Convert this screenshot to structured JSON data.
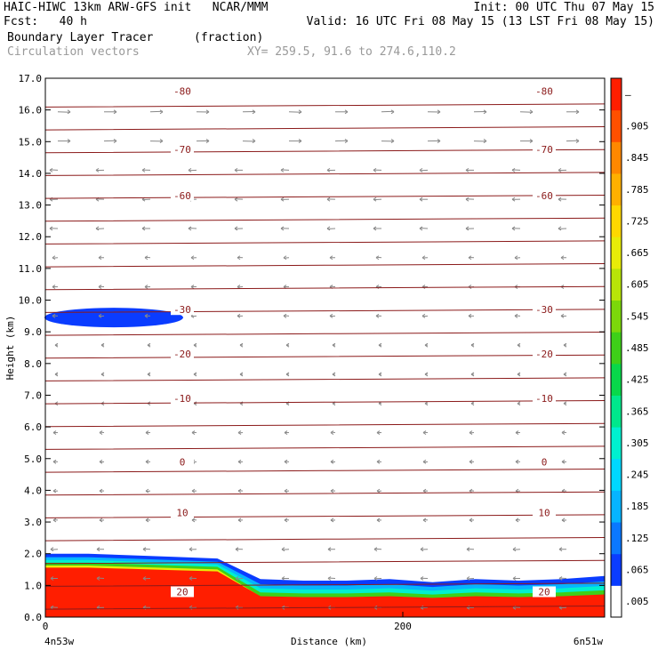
{
  "header": {
    "line1_left": "HAIC-HIWC 13km ARW-GFS init   NCAR/MMM",
    "line1_right": "Init: 00 UTC Thu 07 May 15",
    "line2_left": "Fcst:   40 h",
    "line2_right": "Valid: 16 UTC Fri 08 May 15 (13 LST Fri 08 May 15)",
    "line3_left": "Boundary Layer Tracer",
    "line3_mid": "(fraction)",
    "line4_left": "Circulation vectors",
    "line4_mid": "XY= 259.5, 91.6 to 274.6,110.2"
  },
  "chart_data": {
    "type": "heatmap",
    "title": "Boundary Layer Tracer",
    "units": "(fraction)",
    "xlabel": "Distance (km)",
    "ylabel": "Height (km)",
    "x_ticks": [
      "0",
      "200"
    ],
    "x_end_labels": {
      "left": "4n53w",
      "right": "6n51w"
    },
    "ylim": [
      0,
      17
    ],
    "y_ticks": [
      "0.0",
      "1.0",
      "2.0",
      "3.0",
      "4.0",
      "5.0",
      "6.0",
      "7.0",
      "8.0",
      "9.0",
      "10.0",
      "11.0",
      "12.0",
      "13.0",
      "14.0",
      "15.0",
      "16.0",
      "17.0"
    ],
    "colorbar_labels": [
      ".005",
      ".065",
      ".125",
      ".185",
      ".245",
      ".305",
      ".365",
      ".425",
      ".485",
      ".545",
      ".605",
      ".665",
      ".725",
      ".785",
      ".845",
      ".905",
      "–"
    ],
    "colorbar_colors": [
      "#ffffff",
      "#0a3cff",
      "#0a78ff",
      "#06b4ff",
      "#00d8ff",
      "#00f0d0",
      "#00e88c",
      "#08d84a",
      "#3ed018",
      "#7cd80a",
      "#b8e408",
      "#e8ec08",
      "#ffd800",
      "#ffb000",
      "#ff8800",
      "#ff5000",
      "#ff1e00"
    ],
    "isotherm_labels": [
      {
        "value": "-80",
        "height_km": 16.6
      },
      {
        "value": "-70",
        "height_km": 14.75
      },
      {
        "value": "-60",
        "height_km": 13.3
      },
      {
        "value": "-30",
        "height_km": 9.7
      },
      {
        "value": "-20",
        "height_km": 8.3
      },
      {
        "value": "-10",
        "height_km": 6.9
      },
      {
        "value": "0",
        "height_km": 4.9
      },
      {
        "value": "10",
        "height_km": 3.3
      },
      {
        "value": "20",
        "height_km": 0.8
      }
    ],
    "boundary_layer_top_km": [
      2.0,
      2.0,
      1.95,
      1.9,
      1.85,
      1.2,
      1.15,
      1.15,
      1.2,
      1.1,
      1.2,
      1.15,
      1.2,
      1.3
    ],
    "upper_tracer_patch": {
      "height_km": 9.45,
      "value": 0.065
    }
  }
}
